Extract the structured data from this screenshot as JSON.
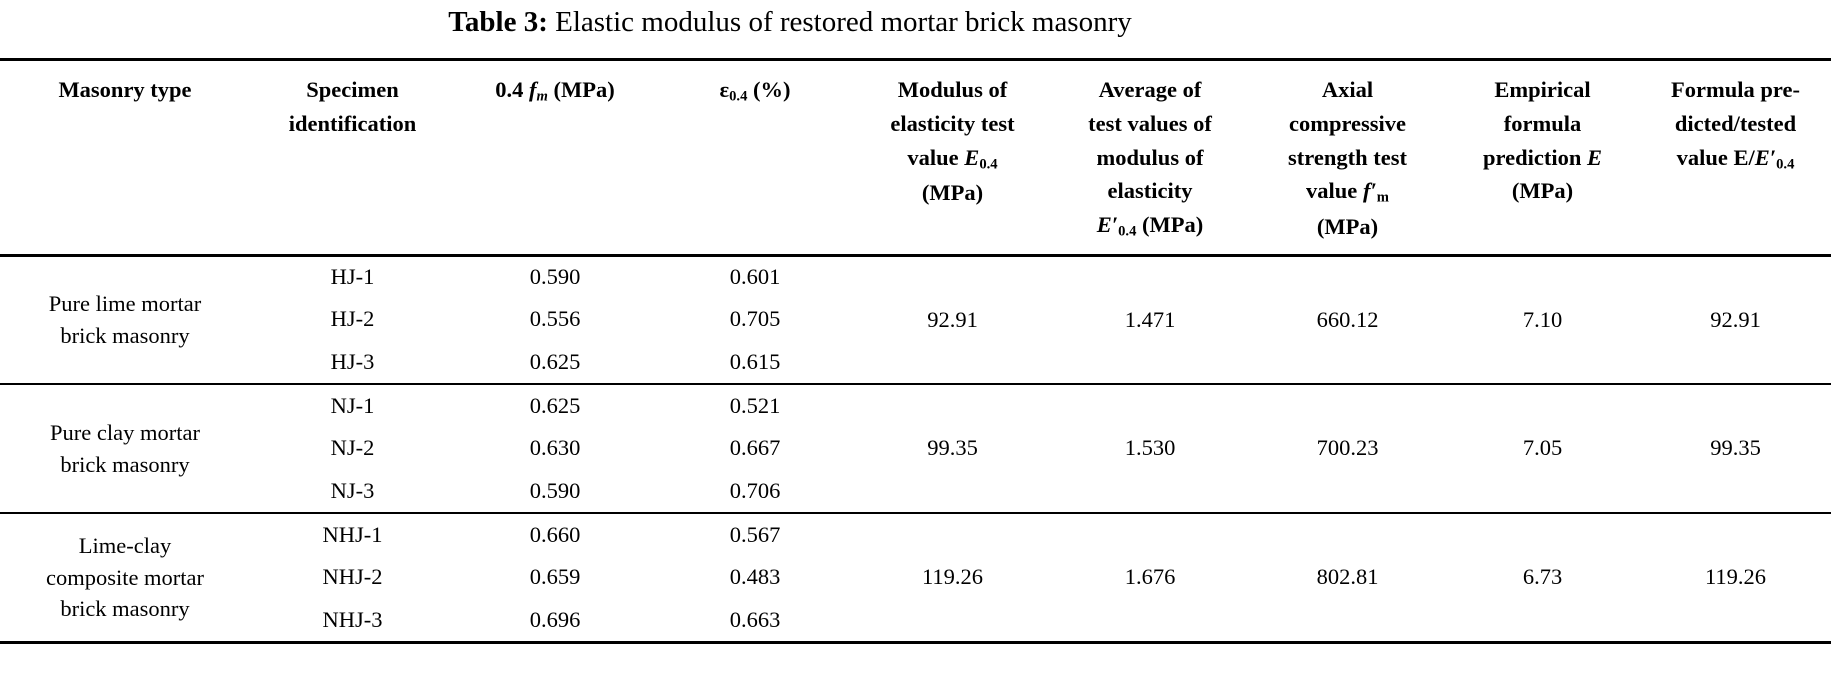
{
  "colors": {
    "text": "#000000",
    "background": "#ffffff",
    "rule": "#000000"
  },
  "title": {
    "label": "Table 3:",
    "text": " Elastic modulus of restored mortar brick masonry"
  },
  "table": {
    "headers": [
      {
        "name": "masonry-type",
        "segments": [
          {
            "t": "Masonry type"
          }
        ]
      },
      {
        "name": "specimen-identification",
        "segments": [
          {
            "t": "Specimen"
          },
          {
            "br": true
          },
          {
            "t": "identification"
          }
        ]
      },
      {
        "name": "04fm-mpa",
        "segments": [
          {
            "t": "0.4 "
          },
          {
            "t": "f",
            "i": true
          },
          {
            "t": "m",
            "i": true,
            "sub": true
          },
          {
            "t": " (MPa)"
          }
        ]
      },
      {
        "name": "eps04-pct",
        "segments": [
          {
            "t": "ε"
          },
          {
            "t": "0.4",
            "sub": true
          },
          {
            "t": " (%)"
          }
        ]
      },
      {
        "name": "modulus-elasticity-test-value",
        "segments": [
          {
            "t": "Modulus of"
          },
          {
            "br": true
          },
          {
            "t": "elasticity test"
          },
          {
            "br": true
          },
          {
            "t": "value "
          },
          {
            "t": "E",
            "i": true
          },
          {
            "t": "0.4",
            "sub": true
          },
          {
            "br": true
          },
          {
            "t": "(MPa)"
          }
        ]
      },
      {
        "name": "average-test-values-modulus",
        "segments": [
          {
            "t": "Average of"
          },
          {
            "br": true
          },
          {
            "t": "test values of"
          },
          {
            "br": true
          },
          {
            "t": "modulus of"
          },
          {
            "br": true
          },
          {
            "t": "elasticity"
          },
          {
            "br": true
          },
          {
            "t": "E",
            "i": true
          },
          {
            "t": "′",
            "i": true
          },
          {
            "t": "0.4",
            "sub": true
          },
          {
            "t": " (MPa)"
          }
        ]
      },
      {
        "name": "axial-compressive-strength",
        "segments": [
          {
            "t": "Axial"
          },
          {
            "br": true
          },
          {
            "t": "compressive"
          },
          {
            "br": true
          },
          {
            "t": "strength test"
          },
          {
            "br": true
          },
          {
            "t": "value "
          },
          {
            "t": "f",
            "i": true
          },
          {
            "t": "′",
            "i": true
          },
          {
            "t": "m",
            "sub": true
          },
          {
            "br": true
          },
          {
            "t": "(MPa)"
          }
        ]
      },
      {
        "name": "empirical-formula-prediction",
        "segments": [
          {
            "t": "Empirical"
          },
          {
            "br": true
          },
          {
            "t": "formula"
          },
          {
            "br": true
          },
          {
            "t": "prediction "
          },
          {
            "t": "E",
            "i": true
          },
          {
            "br": true
          },
          {
            "t": "(MPa)"
          }
        ]
      },
      {
        "name": "formula-predicted-tested-ratio",
        "segments": [
          {
            "t": "Formula pre-"
          },
          {
            "br": true
          },
          {
            "t": "dicted/tested"
          },
          {
            "br": true
          },
          {
            "t": "value E/"
          },
          {
            "t": "E",
            "i": true
          },
          {
            "t": "′",
            "i": true
          },
          {
            "t": "0.4",
            "sub": true
          }
        ]
      }
    ],
    "groups": [
      {
        "type_lines": [
          "Pure lime mortar",
          "brick masonry"
        ],
        "specimens": [
          {
            "id": "HJ-1",
            "fm04": "0.590",
            "eps04": "0.601"
          },
          {
            "id": "HJ-2",
            "fm04": "0.556",
            "eps04": "0.705"
          },
          {
            "id": "HJ-3",
            "fm04": "0.625",
            "eps04": "0.615"
          }
        ],
        "e04_test": "92.91",
        "e04_avg": "1.471",
        "axial_strength": "660.12",
        "empirical_e": "7.10",
        "ratio": "92.91"
      },
      {
        "type_lines": [
          "Pure clay mortar",
          "brick masonry"
        ],
        "specimens": [
          {
            "id": "NJ-1",
            "fm04": "0.625",
            "eps04": "0.521"
          },
          {
            "id": "NJ-2",
            "fm04": "0.630",
            "eps04": "0.667"
          },
          {
            "id": "NJ-3",
            "fm04": "0.590",
            "eps04": "0.706"
          }
        ],
        "e04_test": "99.35",
        "e04_avg": "1.530",
        "axial_strength": "700.23",
        "empirical_e": "7.05",
        "ratio": "99.35"
      },
      {
        "type_lines": [
          "Lime-clay",
          "composite mortar",
          "brick masonry"
        ],
        "specimens": [
          {
            "id": "NHJ-1",
            "fm04": "0.660",
            "eps04": "0.567"
          },
          {
            "id": "NHJ-2",
            "fm04": "0.659",
            "eps04": "0.483"
          },
          {
            "id": "NHJ-3",
            "fm04": "0.696",
            "eps04": "0.663"
          }
        ],
        "e04_test": "119.26",
        "e04_avg": "1.676",
        "axial_strength": "802.81",
        "empirical_e": "6.73",
        "ratio": "119.26"
      }
    ]
  }
}
